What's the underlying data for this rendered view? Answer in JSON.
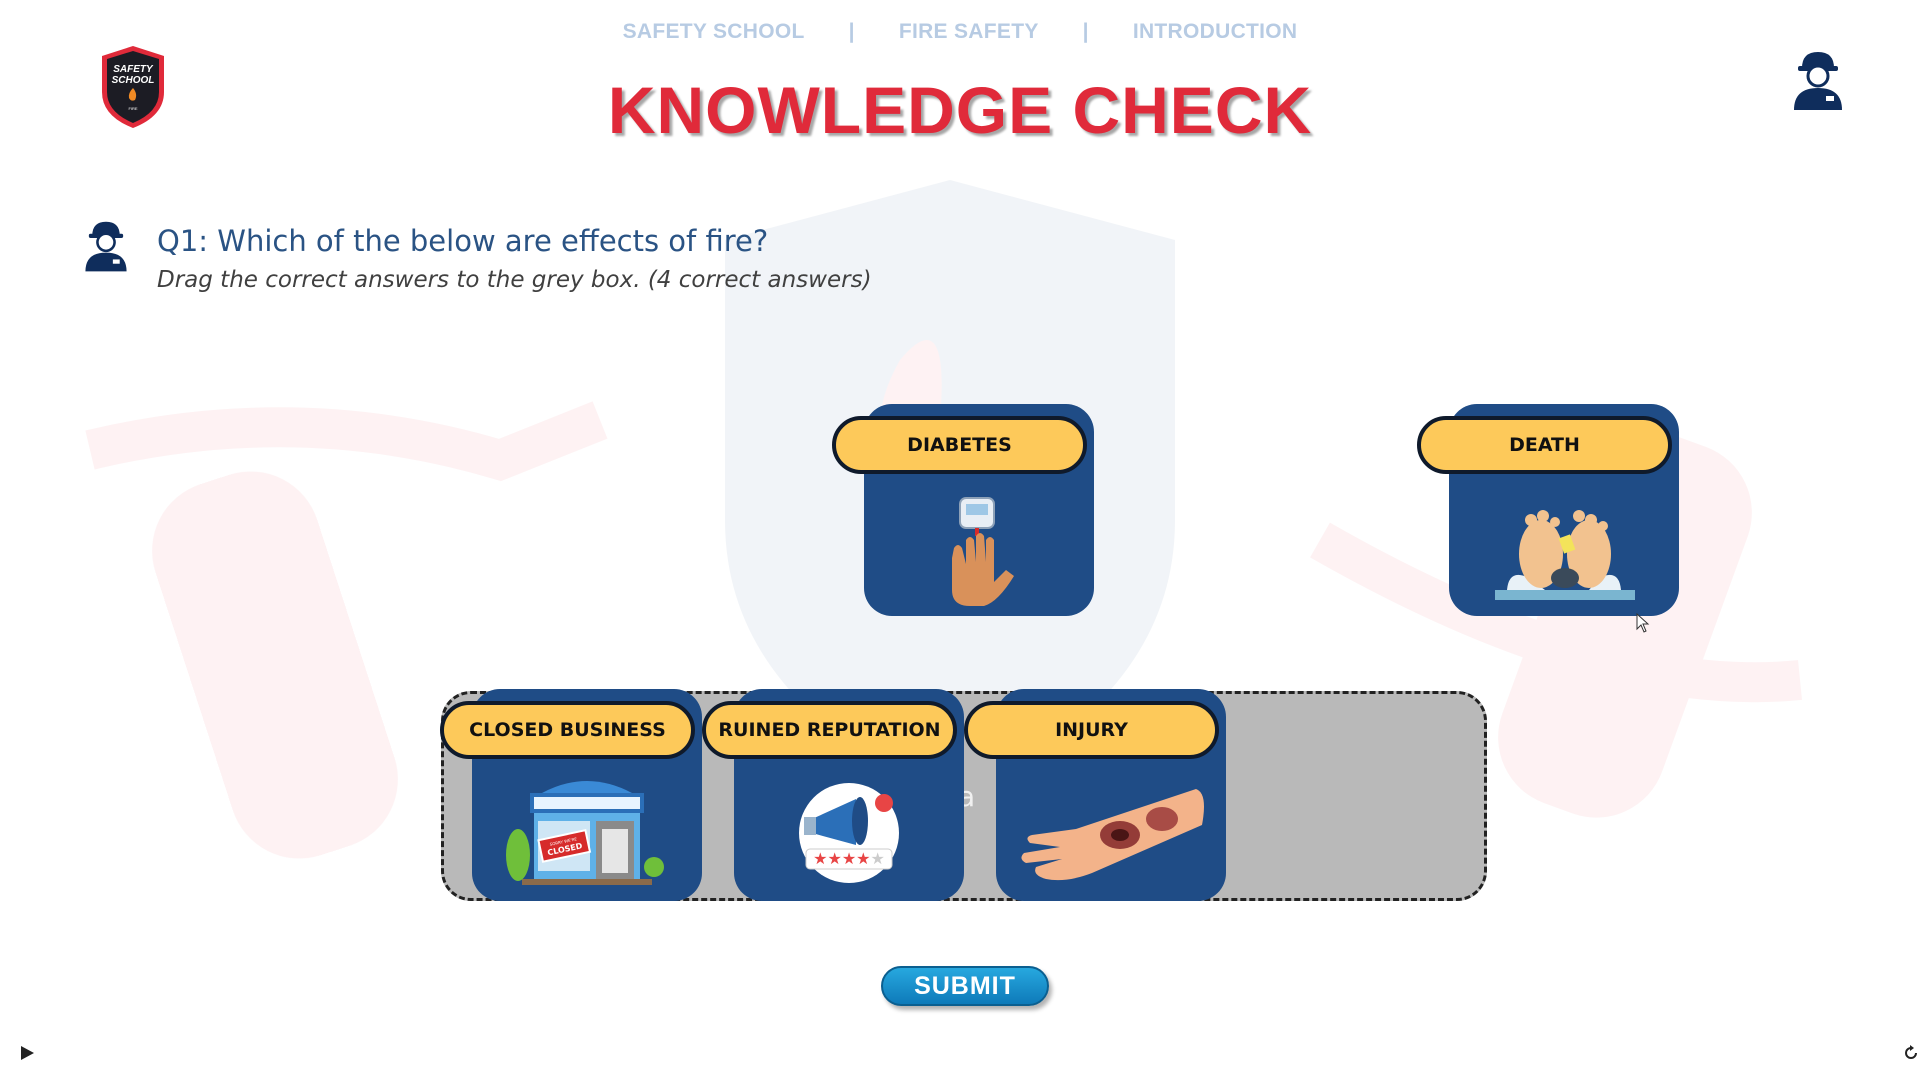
{
  "breadcrumb": {
    "items": [
      "SAFETY SCHOOL",
      "FIRE SAFETY",
      "INTRODUCTION"
    ],
    "separator": "|"
  },
  "logo": {
    "line1": "SAFETY",
    "line2": "SCHOOL",
    "line3": "FIRE"
  },
  "title": "KNOWLEDGE CHECK",
  "question": {
    "text": "Q1: Which of the below are effects of fire?",
    "instruction": "Drag the correct answers to the grey box. (4 correct answers)"
  },
  "drop_zone": {
    "hint": "a"
  },
  "cards": {
    "diabetes": {
      "label": "DIABETES",
      "icon": "glucose-meter-icon"
    },
    "death": {
      "label": "DEATH",
      "icon": "feet-toe-tag-icon"
    },
    "closed_business": {
      "label": "CLOSED BUSINESS",
      "icon": "closed-store-icon",
      "sign": "SORRY WE'RE CLOSED"
    },
    "ruined_reputation": {
      "label": "RUINED REPUTATION",
      "icon": "megaphone-rating-icon"
    },
    "injury": {
      "label": "INJURY",
      "icon": "burned-arm-icon"
    }
  },
  "submit_label": "SUBMIT",
  "colors": {
    "title": "#e02a3a",
    "breadcrumb": "#b7cbe3",
    "card_panel": "#1f4c86",
    "card_pill": "#fdc95a",
    "question": "#2a5384"
  }
}
